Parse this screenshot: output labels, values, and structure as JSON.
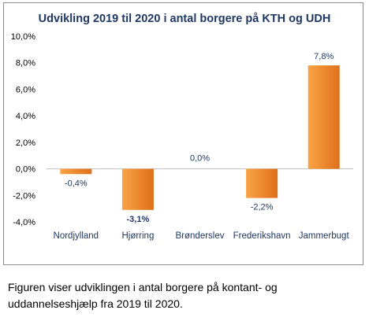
{
  "chart_data": {
    "type": "bar",
    "title": "Udvikling 2019 til 2020 i antal borgere på KTH og UDH",
    "categories": [
      "Nordjylland",
      "Hjørring",
      "Brønderslev",
      "Frederikshavn",
      "Jammerbugt"
    ],
    "values": [
      -0.4,
      -3.1,
      0.0,
      -2.2,
      7.8
    ],
    "data_labels": [
      "-0,4%",
      "-3,1%",
      "0,0%",
      "-2,2%",
      "7,8%"
    ],
    "y_ticks": [
      "10,0%",
      "8,0%",
      "6,0%",
      "4,0%",
      "2,0%",
      "0,0%",
      "-2,0%",
      "-4,0%"
    ],
    "ylim": [
      -4,
      10
    ],
    "grid": false,
    "legend": "none",
    "colors": {
      "bar_light": "#f9a347",
      "bar_dark": "#e06f1a",
      "title": "#1f3864",
      "label": "#1f3864",
      "axis": "#bfbfbf"
    }
  },
  "caption": {
    "line1": "Figuren viser udviklingen i antal borgere på kontant- og",
    "line2": "uddannelseshjælp fra 2019 til 2020."
  }
}
